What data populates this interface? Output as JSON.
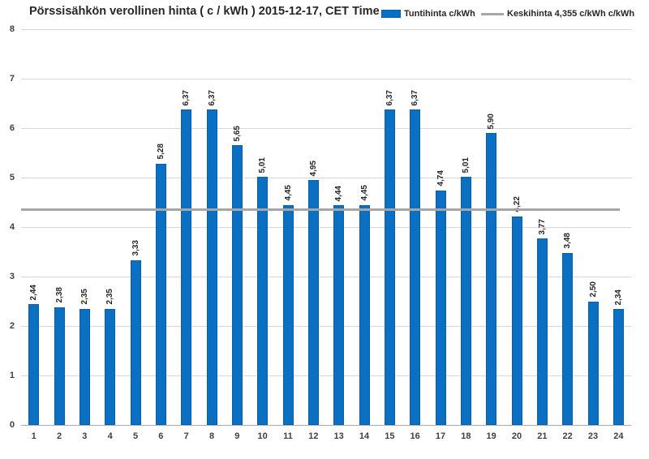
{
  "title": "Pörssisähkön verollinen hinta ( c / kWh ) 2015-12-17, CET Time",
  "legend": {
    "series_bars_label": "Tuntihinta c/kWh",
    "series_avg_label": "Keskihinta 4,355 c/kWh c/kWh"
  },
  "colors": {
    "bar_fill": "#0b70c2",
    "bar_border": "#0a5da8",
    "avg_line": "#a6a6a6",
    "gridline": "#d6d6d6",
    "axis_line": "#ababab",
    "tick_text": "#404040",
    "title_text": "#262626"
  },
  "chart_data": {
    "type": "bar",
    "title": "Pörssisähkön verollinen hinta ( c / kWh ) 2015-12-17, CET Time",
    "xlabel": "",
    "ylabel": "",
    "categories": [
      1,
      2,
      3,
      4,
      5,
      6,
      7,
      8,
      9,
      10,
      11,
      12,
      13,
      14,
      15,
      16,
      17,
      18,
      19,
      20,
      21,
      22,
      23,
      24
    ],
    "values": [
      2.44,
      2.38,
      2.35,
      2.35,
      3.33,
      5.28,
      6.37,
      6.37,
      5.65,
      5.01,
      4.45,
      4.95,
      4.44,
      4.45,
      6.37,
      6.37,
      4.74,
      5.01,
      5.9,
      4.22,
      3.77,
      3.48,
      2.5,
      2.34
    ],
    "value_labels": [
      "2,44",
      "2,38",
      "2,35",
      "2,35",
      "3,33",
      "5,28",
      "6,37",
      "6,37",
      "5,65",
      "5,01",
      "4,45",
      "4,95",
      "4,44",
      "4,45",
      "6,37",
      "6,37",
      "4,74",
      "5,01",
      "5,90",
      "4,22",
      "3,77",
      "3,48",
      "2,50",
      "2,34"
    ],
    "average_line": 4.355,
    "average_label": "Keskihinta 4,355 c/kWh c/kWh",
    "legend_entries": [
      "Tuntihinta c/kWh",
      "Keskihinta 4,355 c/kWh c/kWh"
    ],
    "ylim": [
      0,
      8
    ],
    "yticks": [
      0,
      1,
      2,
      3,
      4,
      5,
      6,
      7,
      8
    ],
    "grid": true,
    "legend_position": "top-right"
  }
}
